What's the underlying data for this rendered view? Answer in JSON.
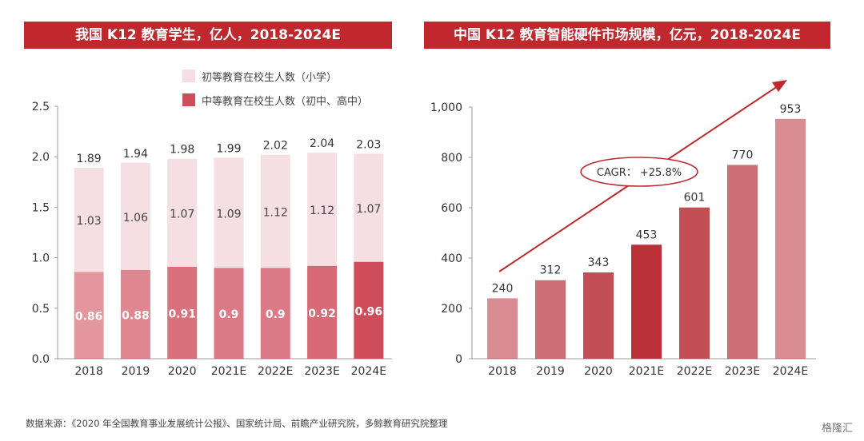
{
  "titles": {
    "left": "我国 K12 教育学生，亿人，2018-2024E",
    "right": "中国 K12 教育智能硬件市场规模，亿元，2018-2024E"
  },
  "source": "数据来源：《2020 年全国教育事业发展统计公报》、国家统计局、前瞻产业研究院，多鲸教育研究院整理",
  "watermark": "格隆汇",
  "colors": {
    "primary_light": "#f5dfe2",
    "secondary_dark": "#cf4d5b",
    "right_bars": "#b93038",
    "title_bg": "#c0282d"
  },
  "chart_data": [
    {
      "type": "bar",
      "stacked": true,
      "categories": [
        "2018",
        "2019",
        "2020",
        "2021E",
        "2022E",
        "2023E",
        "2024E"
      ],
      "series": [
        {
          "name": "中等教育在校生人数（初中、高中）",
          "values": [
            0.86,
            0.88,
            0.91,
            0.9,
            0.9,
            0.92,
            0.96
          ],
          "labels": [
            "0.86",
            "0.88",
            "0.91",
            "0.9",
            "0.9",
            "0.92",
            "0.96"
          ]
        },
        {
          "name": "初等教育在校生人数（小学）",
          "values": [
            1.03,
            1.06,
            1.07,
            1.09,
            1.12,
            1.12,
            1.07
          ],
          "labels": [
            "1.03",
            "1.06",
            "1.07",
            "1.09",
            "1.12",
            "1.12",
            "1.07"
          ]
        }
      ],
      "totals": [
        "1.89",
        "1.94",
        "1.98",
        "1.99",
        "2.02",
        "2.04",
        "2.03"
      ],
      "ylim": [
        0,
        2.5
      ],
      "yticks": [
        "0.0",
        "0.5",
        "1.0",
        "1.5",
        "2.0",
        "2.5"
      ],
      "legend_position": "top-right"
    },
    {
      "type": "bar",
      "categories": [
        "2018",
        "2019",
        "2020",
        "2021E",
        "2022E",
        "2023E",
        "2024E"
      ],
      "values": [
        240,
        312,
        343,
        453,
        601,
        770,
        953
      ],
      "labels": [
        "240",
        "312",
        "343",
        "453",
        "601",
        "770",
        "953"
      ],
      "ylim": [
        0,
        1000
      ],
      "yticks": [
        "0",
        "200",
        "400",
        "600",
        "800",
        "1,000"
      ],
      "annotation": "CAGR： +25.8%"
    }
  ]
}
